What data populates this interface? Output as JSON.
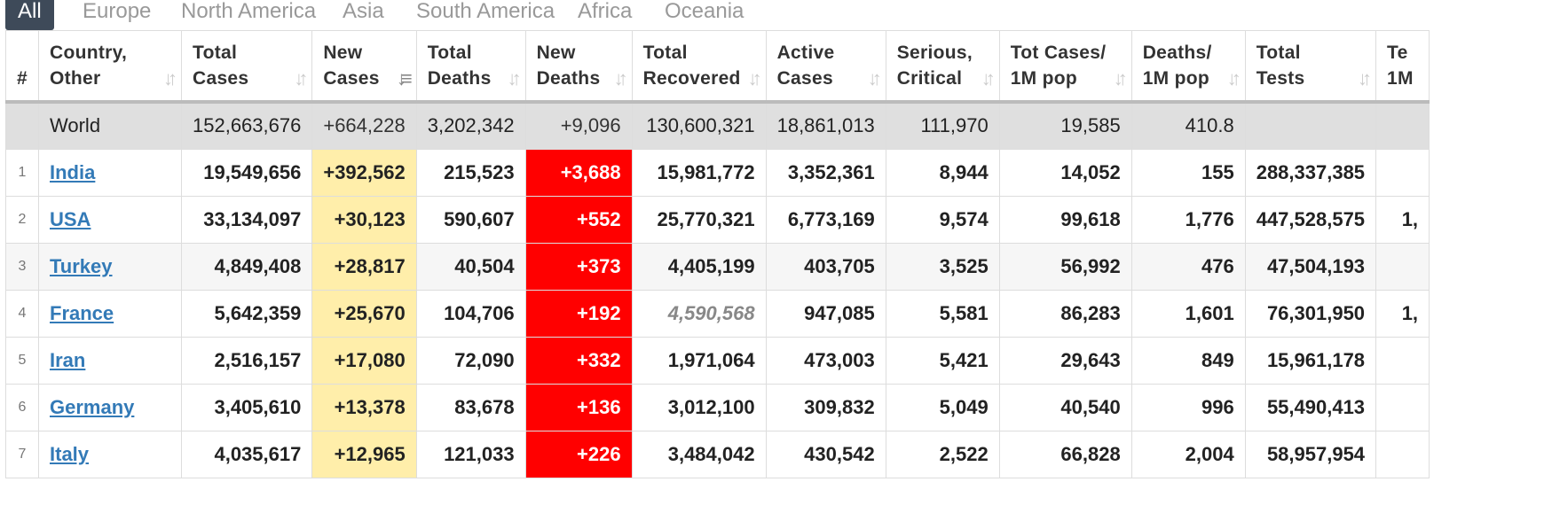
{
  "tabs": [
    "All",
    "Europe",
    "North America",
    "Asia",
    "South America",
    "Africa",
    "Oceania"
  ],
  "headers": [
    {
      "l1": "#",
      "l2": ""
    },
    {
      "l1": "Country,",
      "l2": "Other"
    },
    {
      "l1": "Total",
      "l2": "Cases"
    },
    {
      "l1": "New",
      "l2": "Cases"
    },
    {
      "l1": "Total",
      "l2": "Deaths"
    },
    {
      "l1": "New",
      "l2": "Deaths"
    },
    {
      "l1": "Total",
      "l2": "Recovered"
    },
    {
      "l1": "Active",
      "l2": "Cases"
    },
    {
      "l1": "Serious,",
      "l2": "Critical"
    },
    {
      "l1": "Tot Cases/",
      "l2": "1M pop"
    },
    {
      "l1": "Deaths/",
      "l2": "1M pop"
    },
    {
      "l1": "Total",
      "l2": "Tests"
    },
    {
      "l1": "Te",
      "l2": "1M"
    }
  ],
  "world": {
    "country": "World",
    "total_cases": "152,663,676",
    "new_cases": "+664,228",
    "total_deaths": "3,202,342",
    "new_deaths": "+9,096",
    "total_recovered": "130,600,321",
    "active_cases": "18,861,013",
    "serious": "111,970",
    "cases_per_m": "19,585",
    "deaths_per_m": "410.8",
    "total_tests": "",
    "tests_per_m": ""
  },
  "rows": [
    {
      "rank": "1",
      "country": "India",
      "total_cases": "19,549,656",
      "new_cases": "+392,562",
      "total_deaths": "215,523",
      "new_deaths": "+3,688",
      "total_recovered": "15,981,772",
      "active_cases": "3,352,361",
      "serious": "8,944",
      "cases_per_m": "14,052",
      "deaths_per_m": "155",
      "total_tests": "288,337,385",
      "tests_per_m": ""
    },
    {
      "rank": "2",
      "country": "USA",
      "total_cases": "33,134,097",
      "new_cases": "+30,123",
      "total_deaths": "590,607",
      "new_deaths": "+552",
      "total_recovered": "25,770,321",
      "active_cases": "6,773,169",
      "serious": "9,574",
      "cases_per_m": "99,618",
      "deaths_per_m": "1,776",
      "total_tests": "447,528,575",
      "tests_per_m": "1,"
    },
    {
      "rank": "3",
      "country": "Turkey",
      "total_cases": "4,849,408",
      "new_cases": "+28,817",
      "total_deaths": "40,504",
      "new_deaths": "+373",
      "total_recovered": "4,405,199",
      "active_cases": "403,705",
      "serious": "3,525",
      "cases_per_m": "56,992",
      "deaths_per_m": "476",
      "total_tests": "47,504,193",
      "tests_per_m": ""
    },
    {
      "rank": "4",
      "country": "France",
      "total_cases": "5,642,359",
      "new_cases": "+25,670",
      "total_deaths": "104,706",
      "new_deaths": "+192",
      "total_recovered": "4,590,568",
      "active_cases": "947,085",
      "serious": "5,581",
      "cases_per_m": "86,283",
      "deaths_per_m": "1,601",
      "total_tests": "76,301,950",
      "tests_per_m": "1,"
    },
    {
      "rank": "5",
      "country": "Iran",
      "total_cases": "2,516,157",
      "new_cases": "+17,080",
      "total_deaths": "72,090",
      "new_deaths": "+332",
      "total_recovered": "1,971,064",
      "active_cases": "473,003",
      "serious": "5,421",
      "cases_per_m": "29,643",
      "deaths_per_m": "849",
      "total_tests": "15,961,178",
      "tests_per_m": ""
    },
    {
      "rank": "6",
      "country": "Germany",
      "total_cases": "3,405,610",
      "new_cases": "+13,378",
      "total_deaths": "83,678",
      "new_deaths": "+136",
      "total_recovered": "3,012,100",
      "active_cases": "309,832",
      "serious": "5,049",
      "cases_per_m": "40,540",
      "deaths_per_m": "996",
      "total_tests": "55,490,413",
      "tests_per_m": ""
    },
    {
      "rank": "7",
      "country": "Italy",
      "total_cases": "4,035,617",
      "new_cases": "+12,965",
      "total_deaths": "121,033",
      "new_deaths": "+226",
      "total_recovered": "3,484,042",
      "active_cases": "430,542",
      "serious": "2,522",
      "cases_per_m": "66,828",
      "deaths_per_m": "2,004",
      "total_tests": "58,957,954",
      "tests_per_m": ""
    }
  ],
  "icons": {
    "sort": "sort-icon",
    "sort_active": "sort-desc-icon"
  },
  "colors": {
    "new_cases_bg": "#ffeeaa",
    "new_deaths_bg": "#ff0000",
    "world_bg": "#dfdfdf",
    "link": "#337ab7",
    "tab_active": "#3e4a59"
  }
}
